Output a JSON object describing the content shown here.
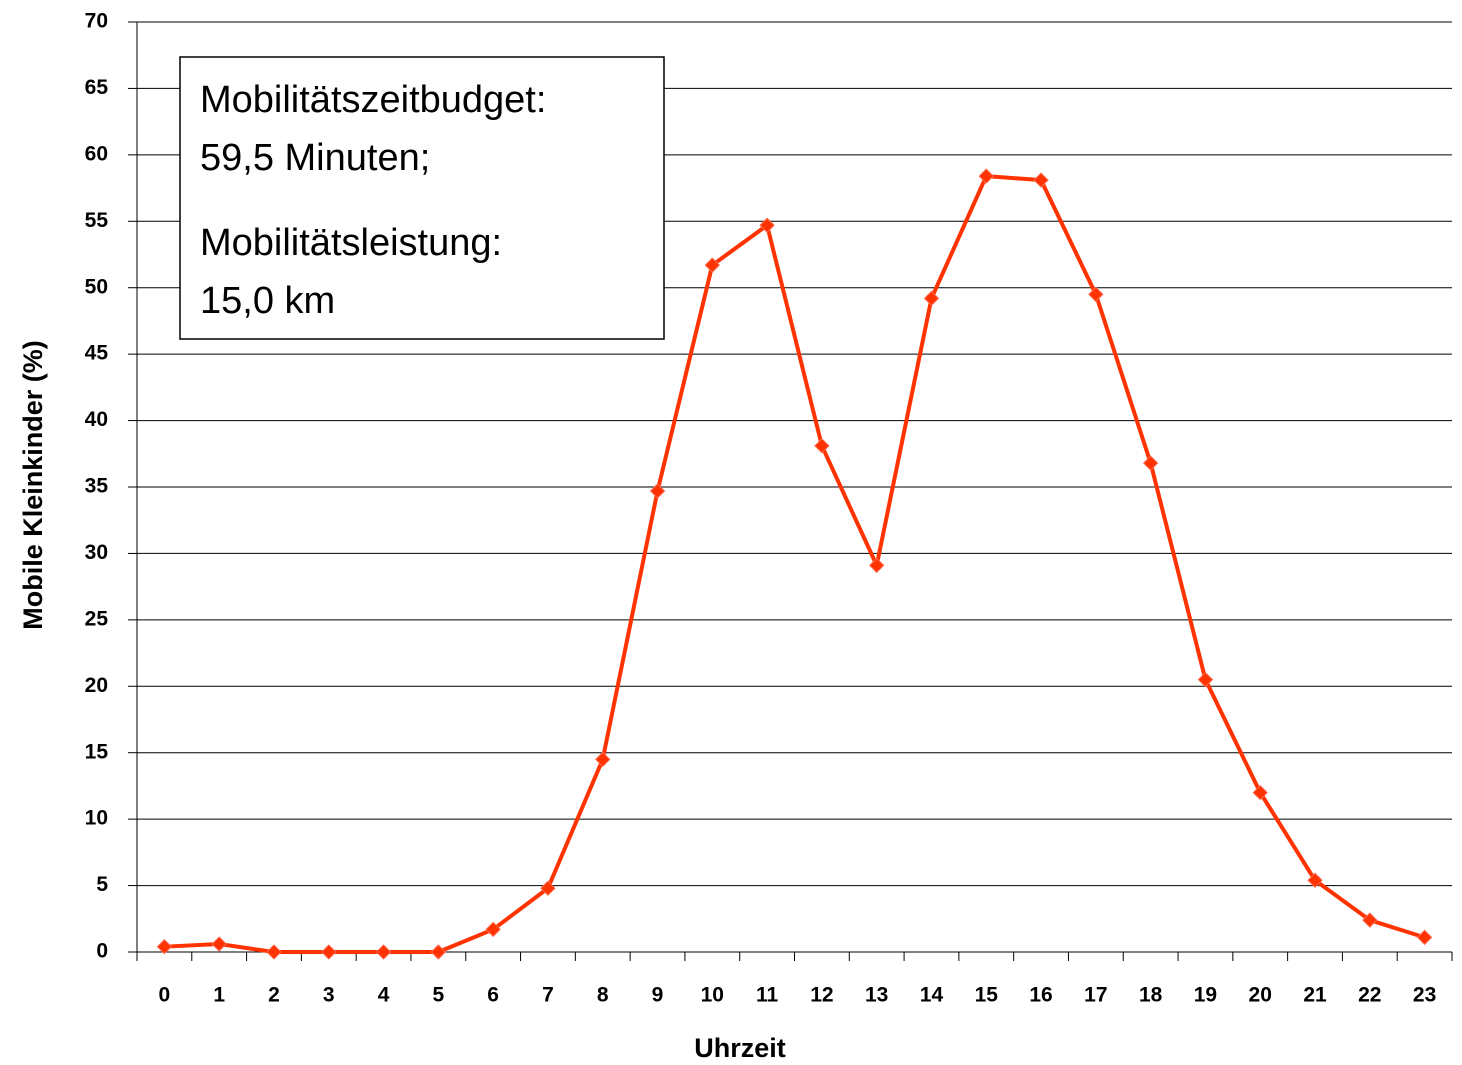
{
  "chart_data": {
    "type": "line",
    "x_label": "Uhrzeit",
    "y_label": "Mobile Kleinkinder (%)",
    "categories": [
      "0",
      "1",
      "2",
      "3",
      "4",
      "5",
      "6",
      "7",
      "8",
      "9",
      "10",
      "11",
      "12",
      "13",
      "14",
      "15",
      "16",
      "17",
      "18",
      "19",
      "20",
      "21",
      "22",
      "23"
    ],
    "series": [
      {
        "color": "#ff3300",
        "values": [
          0.4,
          0.6,
          0,
          0,
          0,
          0,
          1.7,
          4.8,
          14.5,
          34.7,
          51.7,
          54.7,
          38.1,
          29.1,
          49.2,
          58.4,
          58.1,
          49.5,
          36.8,
          20.5,
          12.0,
          5.4,
          2.4,
          1.1
        ]
      }
    ],
    "ylim": [
      0,
      70
    ],
    "yticks": [
      0,
      5,
      10,
      15,
      20,
      25,
      30,
      35,
      40,
      45,
      50,
      55,
      60,
      65,
      70
    ],
    "grid": true,
    "annotation": [
      "Mobilitätszeitbudget:",
      "59,5 Minuten;",
      "Mobilitätsleistung:",
      "15,0 km"
    ]
  }
}
